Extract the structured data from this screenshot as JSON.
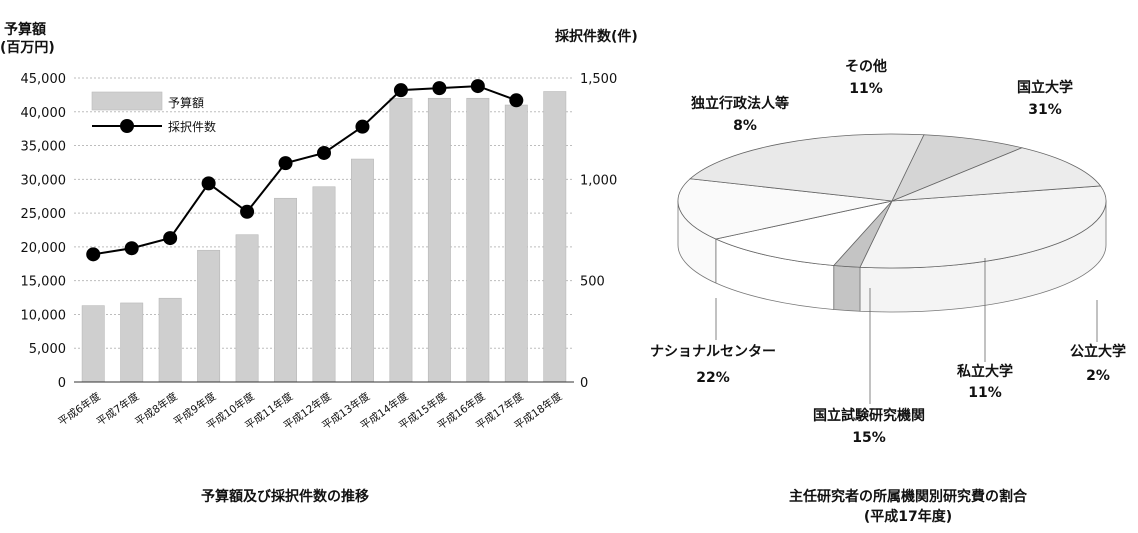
{
  "chart_data": [
    {
      "type": "bar+line",
      "caption": "予算額及び採択件数の推移",
      "categories": [
        "平成6年度",
        "平成7年度",
        "平成8年度",
        "平成9年度",
        "平成10年度",
        "平成11年度",
        "平成12年度",
        "平成13年度",
        "平成14年度",
        "平成15年度",
        "平成16年度",
        "平成17年度",
        "平成18年度"
      ],
      "left_axis": {
        "title_line1": "予算額",
        "title_line2": "(百万円)",
        "ticks": [
          "0",
          "5,000",
          "10,000",
          "15,000",
          "20,000",
          "25,000",
          "30,000",
          "35,000",
          "40,000",
          "45,000"
        ],
        "ylim": [
          0,
          45000
        ]
      },
      "right_axis": {
        "title": "採択件数(件)",
        "ticks": [
          "0",
          "500",
          "1,000",
          "1,500"
        ],
        "ylim": [
          0,
          1500
        ]
      },
      "grid": true,
      "legend": {
        "position": "top-left",
        "entries": [
          "予算額",
          "採択件数"
        ]
      },
      "series": [
        {
          "name": "予算額",
          "type": "bar",
          "axis": "left",
          "color": "#cfcfcf",
          "values": [
            11300,
            11700,
            12400,
            19500,
            21800,
            27200,
            28900,
            33000,
            42000,
            42000,
            42000,
            41000,
            43000
          ]
        },
        {
          "name": "採択件数",
          "type": "line",
          "axis": "right",
          "color": "#000000",
          "values": [
            630,
            660,
            710,
            980,
            840,
            1080,
            1130,
            1260,
            1440,
            1450,
            1460,
            1390,
            null
          ]
        }
      ]
    },
    {
      "type": "pie",
      "caption_line1": "主任研究者の所属機関別研究費の割合",
      "caption_line2": "(平成17年度)",
      "slices": [
        {
          "label": "国立大学",
          "pct": "31%",
          "value": 31,
          "color": "#f4f4f4"
        },
        {
          "label": "公立大学",
          "pct": "2%",
          "value": 2,
          "color": "#c4c4c4"
        },
        {
          "label": "私立大学",
          "pct": "11%",
          "value": 11,
          "color": "#ffffff"
        },
        {
          "label": "国立試験研究機関",
          "pct": "15%",
          "value": 15,
          "color": "#fafafa"
        },
        {
          "label": "ナショナルセンター",
          "pct": "22%",
          "value": 22,
          "color": "#e9e9e9"
        },
        {
          "label": "独立行政法人等",
          "pct": "8%",
          "value": 8,
          "color": "#d5d5d5"
        },
        {
          "label": "その他",
          "pct": "11%",
          "value": 11,
          "color": "#ececec"
        }
      ]
    }
  ]
}
